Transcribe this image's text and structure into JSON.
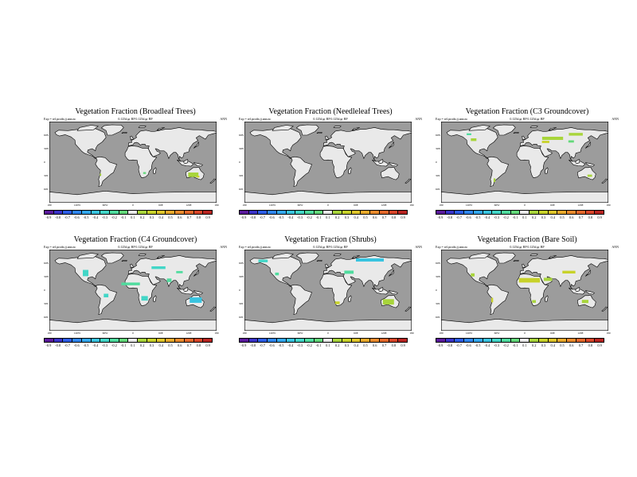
{
  "lat_labels": [
    "60N",
    "30N",
    "0",
    "30S",
    "60S"
  ],
  "lon_labels": [
    "180",
    "120W",
    "60W",
    "0",
    "60E",
    "120E",
    "180"
  ],
  "colorbar": {
    "labels": [
      "-0.9",
      "-0.8",
      "-0.7",
      "-0.6",
      "-0.5",
      "-0.4",
      "-0.3",
      "-0.2",
      "-0.1",
      "0.1",
      "0.2",
      "0.3",
      "0.4",
      "0.5",
      "0.6",
      "0.7",
      "0.8",
      "0.9"
    ],
    "colors": [
      "#5a1a9c",
      "#3a33c8",
      "#2c5ce6",
      "#2f86f0",
      "#33a7ee",
      "#39c4e0",
      "#42d6c7",
      "#4fdc9e",
      "#63d97a",
      "#e9e9e9",
      "#a8d53b",
      "#c8d22a",
      "#dfc52a",
      "#e9a92b",
      "#e98a2c",
      "#e4682b",
      "#d9462a",
      "#b82421"
    ]
  },
  "colors": {
    "ocean": "#9c9c9c",
    "land": "#e9e9e9",
    "coast": "#000000"
  },
  "panels": [
    {
      "title": "Vegetation Fraction (Broadleaf Trees)",
      "meta_left": "Exp = ref.prodn.jj.ann.nc",
      "meta_mid": "0.125d.gr BP   0.125d.gr BP",
      "meta_right": "ANN",
      "patches": [
        {
          "lon": 130,
          "lat": -28,
          "w": 22,
          "h": 10,
          "color": "#a8d53b"
        },
        {
          "lon": 140,
          "lat": -32,
          "w": 6,
          "h": 4,
          "color": "#c8d22a"
        },
        {
          "lon": 25,
          "lat": -24,
          "w": 6,
          "h": 4,
          "color": "#63d97a"
        },
        {
          "lon": -70,
          "lat": -28,
          "w": 3,
          "h": 5,
          "color": "#a8d53b"
        }
      ]
    },
    {
      "title": "Vegetation Fraction (Needleleaf Trees)",
      "meta_left": "Exp = ref.prodn.jj.ann.nc",
      "meta_mid": "0.125d.gr BP   0.125d.gr BP",
      "meta_right": "ANN",
      "patches": []
    },
    {
      "title": "Vegetation Fraction (C3 Groundcover)",
      "meta_left": "Exp = ref.prodn.jj.ann.nc",
      "meta_mid": "0.125d.gr BP   0.125d.gr BP",
      "meta_right": "ANN",
      "patches": [
        {
          "lon": 60,
          "lat": 53,
          "w": 45,
          "h": 7,
          "color": "#a8d53b"
        },
        {
          "lon": 110,
          "lat": 62,
          "w": 30,
          "h": 6,
          "color": "#a8d53b"
        },
        {
          "lon": -110,
          "lat": 50,
          "w": 12,
          "h": 6,
          "color": "#a8d53b"
        },
        {
          "lon": 45,
          "lat": 45,
          "w": 16,
          "h": 5,
          "color": "#c8d22a"
        },
        {
          "lon": 100,
          "lat": 46,
          "w": 12,
          "h": 5,
          "color": "#63d97a"
        },
        {
          "lon": -120,
          "lat": 62,
          "w": 10,
          "h": 4,
          "color": "#4fdc9e"
        },
        {
          "lon": 140,
          "lat": -30,
          "w": 10,
          "h": 5,
          "color": "#a8d53b"
        },
        {
          "lon": -65,
          "lat": -40,
          "w": 4,
          "h": 8,
          "color": "#a8d53b"
        }
      ]
    },
    {
      "title": "Vegetation Fraction (C4 Groundcover)",
      "meta_left": "Exp = ref.prodn.jj.ann.nc",
      "meta_mid": "0.125d.gr BP   0.125d.gr BP",
      "meta_right": "ANN",
      "patches": [
        {
          "lon": -102,
          "lat": 38,
          "w": 12,
          "h": 14,
          "color": "#42d6c7"
        },
        {
          "lon": -5,
          "lat": 14,
          "w": 40,
          "h": 6,
          "color": "#4fdc9e"
        },
        {
          "lon": 25,
          "lat": -18,
          "w": 14,
          "h": 10,
          "color": "#42d6c7"
        },
        {
          "lon": 135,
          "lat": -22,
          "w": 26,
          "h": 12,
          "color": "#39c4e0"
        },
        {
          "lon": 78,
          "lat": 22,
          "w": 10,
          "h": 8,
          "color": "#4fdc9e"
        },
        {
          "lon": -58,
          "lat": -12,
          "w": 10,
          "h": 8,
          "color": "#42d6c7"
        },
        {
          "lon": 55,
          "lat": 50,
          "w": 30,
          "h": 6,
          "color": "#42d6c7"
        },
        {
          "lon": 100,
          "lat": 40,
          "w": 14,
          "h": 5,
          "color": "#4fdc9e"
        }
      ]
    },
    {
      "title": "Vegetation Fraction (Shrubs)",
      "meta_left": "Exp = ref.prodn.jj.ann.nc",
      "meta_mid": "0.125d.gr BP   0.125d.gr BP",
      "meta_right": "ANN",
      "patches": [
        {
          "lon": 90,
          "lat": 67,
          "w": 60,
          "h": 7,
          "color": "#39c4e0"
        },
        {
          "lon": -140,
          "lat": 65,
          "w": 20,
          "h": 6,
          "color": "#42d6c7"
        },
        {
          "lon": 130,
          "lat": -26,
          "w": 24,
          "h": 12,
          "color": "#a8d53b"
        },
        {
          "lon": 45,
          "lat": 40,
          "w": 20,
          "h": 7,
          "color": "#4fdc9e"
        },
        {
          "lon": 20,
          "lat": -28,
          "w": 10,
          "h": 6,
          "color": "#c8d22a"
        },
        {
          "lon": -110,
          "lat": 36,
          "w": 8,
          "h": 6,
          "color": "#4fdc9e"
        }
      ]
    },
    {
      "title": "Vegetation Fraction (Bare Soil)",
      "meta_left": "Exp = ref.prodn.jj.ann.nc",
      "meta_mid": "0.125d.gr BP   0.125d.gr BP",
      "meta_right": "ANN",
      "patches": [
        {
          "lon": 10,
          "lat": 22,
          "w": 45,
          "h": 10,
          "color": "#c8d22a"
        },
        {
          "lon": 50,
          "lat": 24,
          "w": 18,
          "h": 7,
          "color": "#a8d53b"
        },
        {
          "lon": 95,
          "lat": 40,
          "w": 28,
          "h": 6,
          "color": "#c8d22a"
        },
        {
          "lon": -112,
          "lat": 34,
          "w": 8,
          "h": 7,
          "color": "#a8d53b"
        },
        {
          "lon": 130,
          "lat": -25,
          "w": 14,
          "h": 7,
          "color": "#a8d53b"
        },
        {
          "lon": -70,
          "lat": -22,
          "w": 4,
          "h": 10,
          "color": "#c8d22a"
        },
        {
          "lon": 20,
          "lat": -25,
          "w": 8,
          "h": 6,
          "color": "#a8d53b"
        }
      ]
    }
  ]
}
